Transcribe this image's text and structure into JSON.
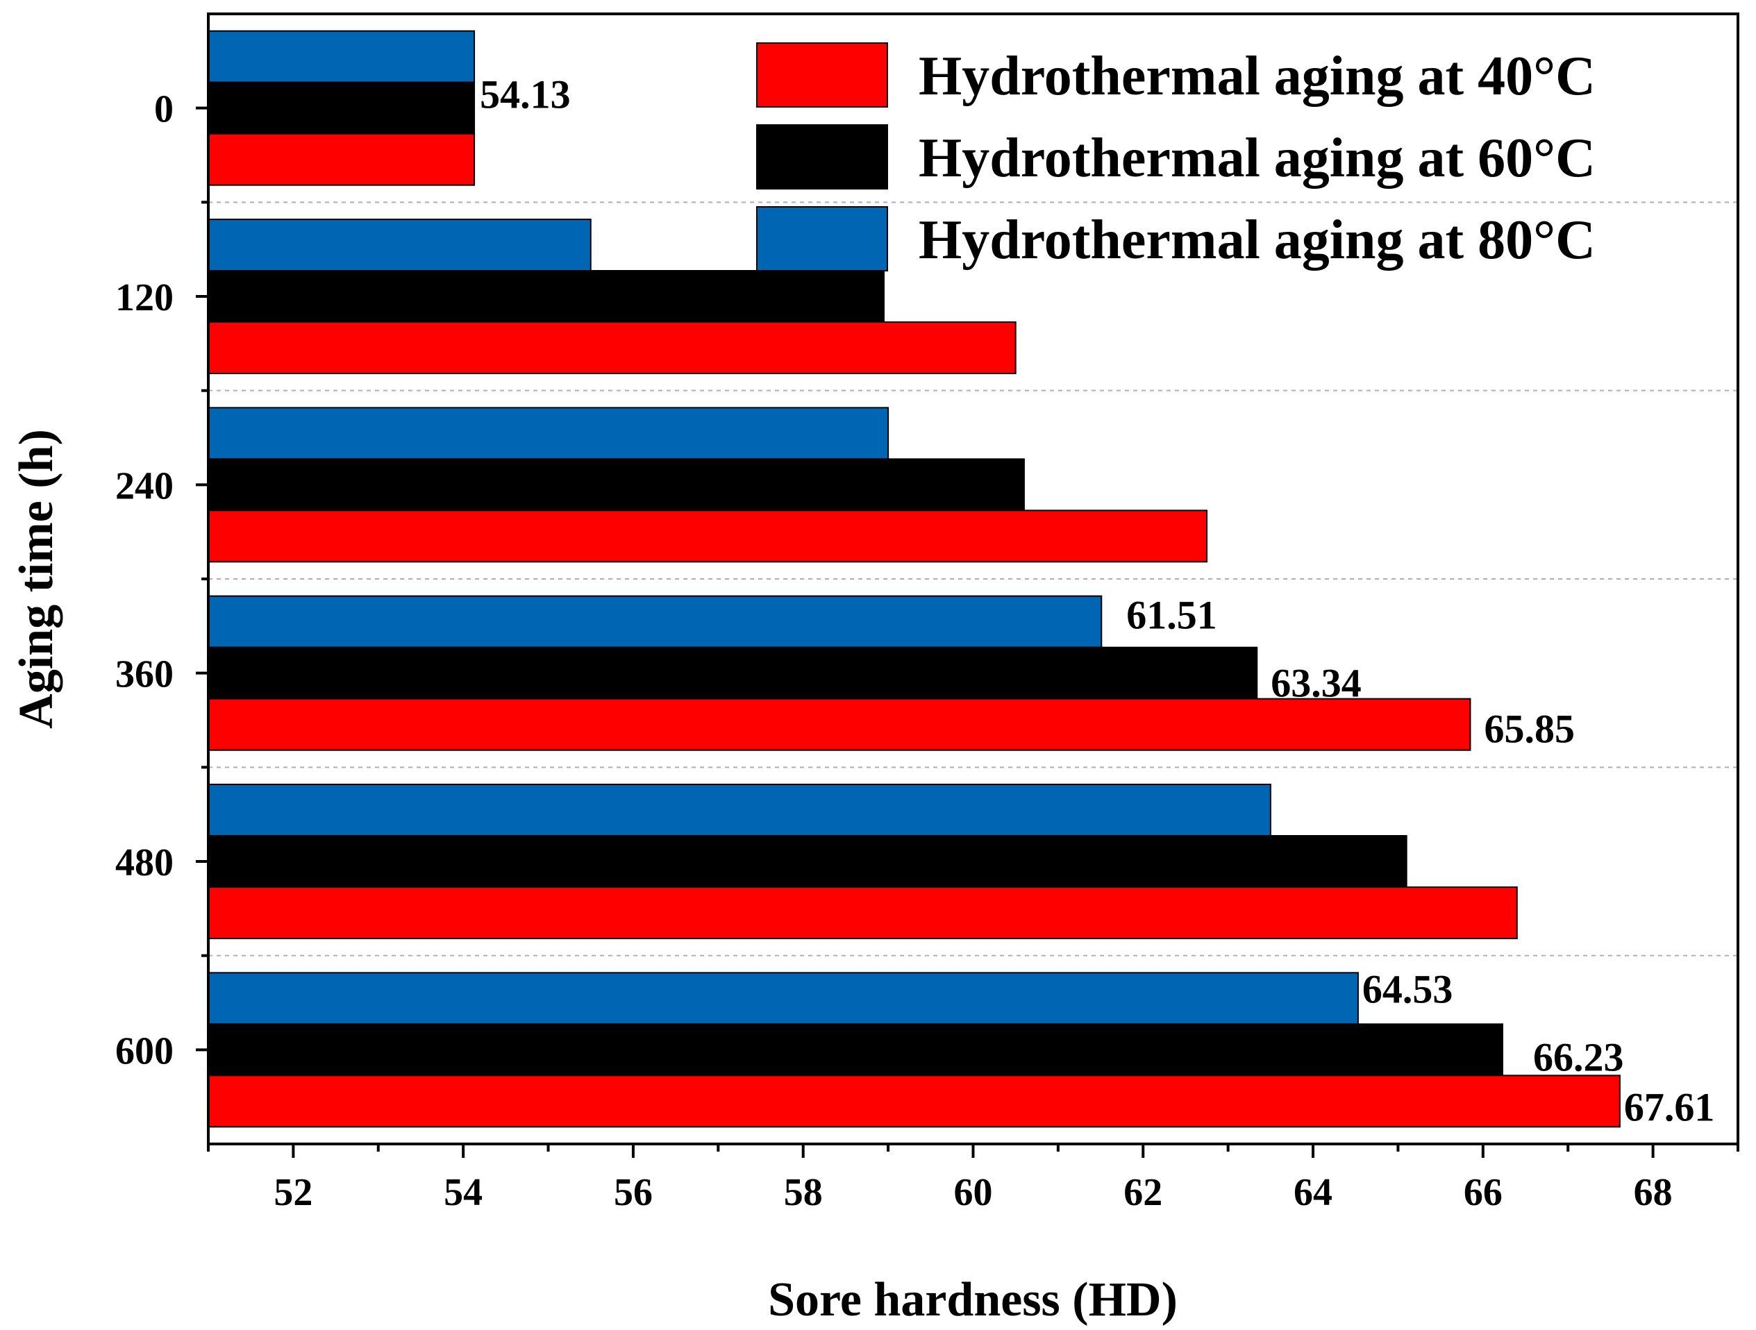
{
  "chart_data": {
    "type": "bar",
    "orientation": "horizontal",
    "categories": [
      "0",
      "120",
      "240",
      "360",
      "480",
      "600"
    ],
    "series": [
      {
        "name": "Hydrothermal aging at 40°C",
        "color": "#ff0000",
        "values": [
          54.13,
          60.5,
          62.75,
          65.85,
          66.4,
          67.61
        ]
      },
      {
        "name": "Hydrothermal aging at 60°C",
        "color": "#000000",
        "values": [
          54.13,
          58.95,
          60.6,
          63.34,
          65.1,
          66.23
        ]
      },
      {
        "name": "Hydrothermal aging at 80°C",
        "color": "#0066b3",
        "values": [
          54.13,
          55.5,
          59.0,
          61.51,
          63.5,
          64.53
        ]
      }
    ],
    "data_labels": [
      {
        "category": "0",
        "series": 1,
        "text": "54.13"
      },
      {
        "category": "360",
        "series": 2,
        "text": "61.51"
      },
      {
        "category": "360",
        "series": 1,
        "text": "63.34"
      },
      {
        "category": "360",
        "series": 0,
        "text": "65.85"
      },
      {
        "category": "600",
        "series": 2,
        "text": "64.53"
      },
      {
        "category": "600",
        "series": 1,
        "text": "66.23"
      },
      {
        "category": "600",
        "series": 0,
        "text": "67.61"
      }
    ],
    "xlabel": "Sore hardness (HD)",
    "ylabel": "Aging time (h)",
    "xlim": [
      51,
      69
    ],
    "xticks": [
      "52",
      "54",
      "56",
      "58",
      "60",
      "62",
      "64",
      "66",
      "68"
    ],
    "gridlines": "dashed between groups",
    "legend_position": "top-right"
  }
}
